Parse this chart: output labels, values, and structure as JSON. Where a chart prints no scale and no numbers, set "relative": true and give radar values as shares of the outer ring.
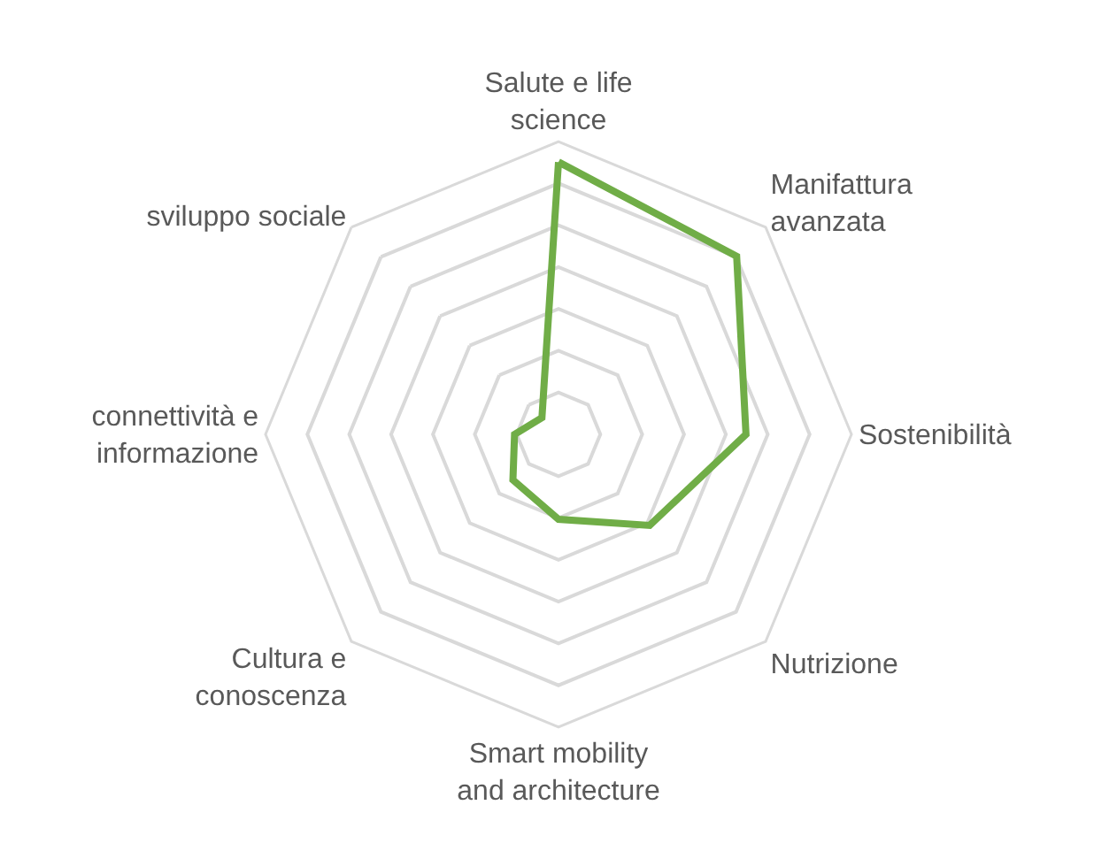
{
  "chart_data": {
    "type": "radar",
    "relative": true,
    "grid": true,
    "marker": "none",
    "line_style": "solid",
    "categories": [
      "Salute e life science",
      "Manifattura avanzata",
      "Sostenibilità",
      "Nutrizione",
      "Smart mobility and architecture",
      "Cultura e conoscenza",
      "connettività e informazione",
      "sviluppo sociale"
    ],
    "series": [
      {
        "color": "#70ad47",
        "values": [
          0.93,
          0.86,
          0.64,
          0.44,
          0.29,
          0.22,
          0.15,
          0.08
        ]
      }
    ]
  }
}
